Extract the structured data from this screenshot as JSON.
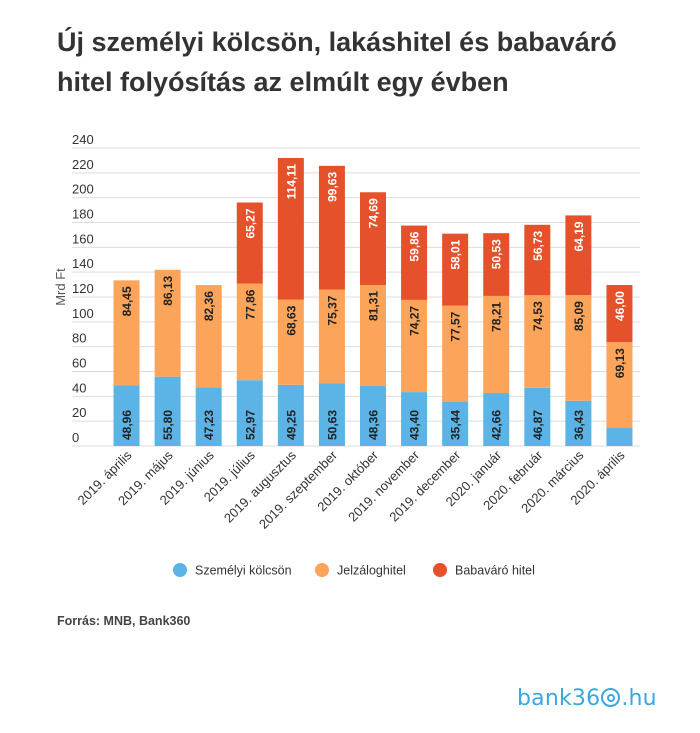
{
  "title": "Új személyi kölcsön, lakáshitel és babaváró hitel folyósítás az elmúlt egy évben",
  "source": "Forrás: MNB, Bank360",
  "logo": {
    "text_left": "bank36",
    "text_right": ".hu"
  },
  "colors": {
    "szemelyi": "#5bb4e5",
    "jelzalog": "#fba45a",
    "babavaro": "#e5512a",
    "grid": "#dddddd",
    "text": "#333333"
  },
  "chart_data": {
    "type": "bar",
    "stacked": true,
    "ylabel": "Mrd Ft",
    "xlabel": "",
    "ylim": [
      0,
      240
    ],
    "yticks": [
      0,
      20,
      40,
      60,
      80,
      100,
      120,
      140,
      160,
      180,
      200,
      220,
      240
    ],
    "grid": true,
    "legend_position": "bottom",
    "categories": [
      "2019. április",
      "2019. május",
      "2019. június",
      "2019. július",
      "2019. augusztus",
      "2019. szeptember",
      "2019. október",
      "2019. november",
      "2019. december",
      "2020. január",
      "2020. február",
      "2020. március",
      "2020. április"
    ],
    "series": [
      {
        "name": "Személyi kölcsön",
        "color": "#5bb4e5",
        "values": [
          48.96,
          55.8,
          47.23,
          52.97,
          49.25,
          50.63,
          48.36,
          43.4,
          35.44,
          42.66,
          46.87,
          36.43,
          14.5
        ],
        "labels": [
          "48,96",
          "55,80",
          "47,23",
          "52,97",
          "49,25",
          "50,63",
          "48,36",
          "43,40",
          "35,44",
          "42,66",
          "46,87",
          "36,43",
          ""
        ]
      },
      {
        "name": "Jelzáloghitel",
        "color": "#fba45a",
        "values": [
          84.45,
          86.13,
          82.36,
          77.86,
          68.63,
          75.37,
          81.31,
          74.27,
          77.57,
          78.21,
          74.53,
          85.09,
          69.13
        ],
        "labels": [
          "84,45",
          "86,13",
          "82,36",
          "77,86",
          "68,63",
          "75,37",
          "81,31",
          "74,27",
          "77,57",
          "78,21",
          "74,53",
          "85,09",
          "69,13"
        ]
      },
      {
        "name": "Babaváró hitel",
        "color": "#e5512a",
        "values": [
          0,
          0,
          0,
          65.27,
          114.11,
          99.63,
          74.69,
          59.86,
          58.01,
          50.53,
          56.73,
          64.19,
          46.0
        ],
        "labels": [
          "",
          "",
          "",
          "65,27",
          "114,11",
          "99,63",
          "74,69",
          "59,86",
          "58,01",
          "50,53",
          "56,73",
          "64,19",
          "46,00"
        ]
      }
    ]
  }
}
